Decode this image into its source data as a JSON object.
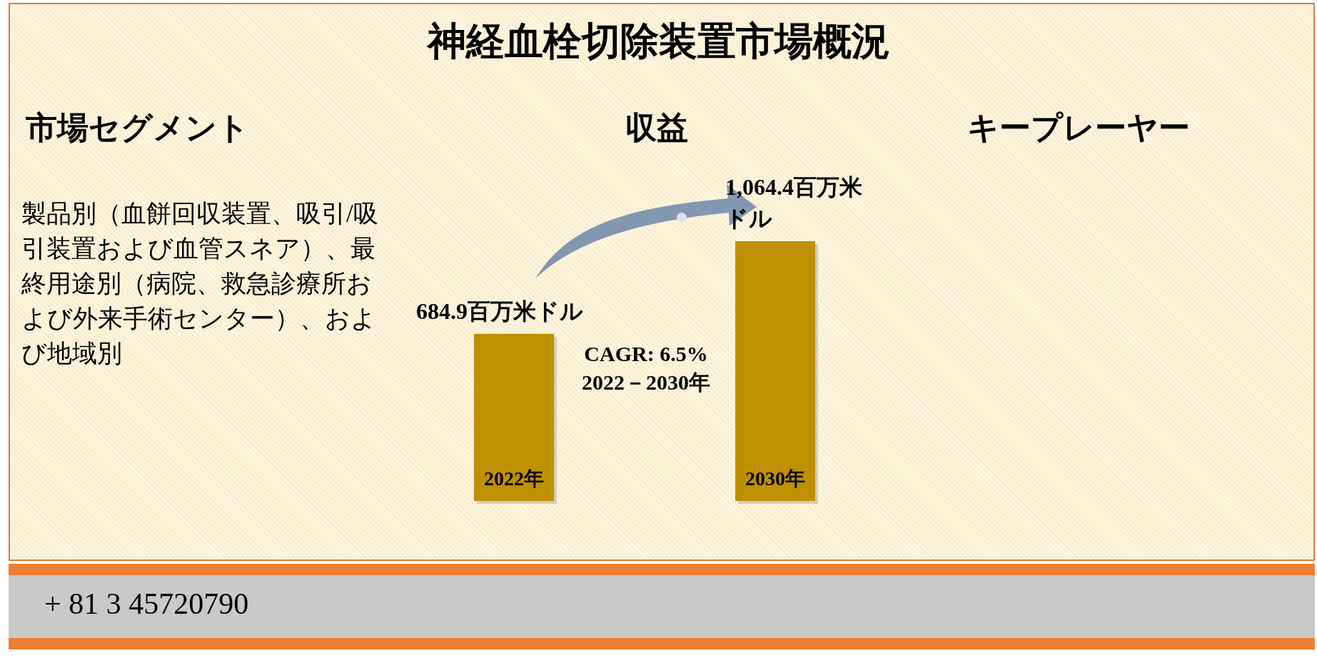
{
  "chart_data": [
    {
      "type": "other",
      "title": "神経血栓切除装置市場概況",
      "annotations": [
        "+ 81 3 45720790"
      ]
    },
    {
      "type": "other",
      "title": "市場セグメント",
      "annotations": [
        "製品別（血餅回収装置、吸引/吸引装置および血管スネア）、最終用途別（病院、救急診療所および外来手術センター）、および地域別"
      ]
    },
    {
      "type": "bar",
      "title": "収益",
      "categories": [
        "2022年",
        "2030年"
      ],
      "values": [
        684.9,
        1064.4
      ],
      "value_labels": [
        "684.9百万米ドル",
        "1,064.4百万米ドル"
      ],
      "colors": [
        "#bf9000",
        "#bf9000"
      ],
      "annotations": [
        "CAGR: 6.5%\n2022－2030年"
      ]
    },
    {
      "type": "other",
      "title": "キープレーヤー"
    }
  ]
}
